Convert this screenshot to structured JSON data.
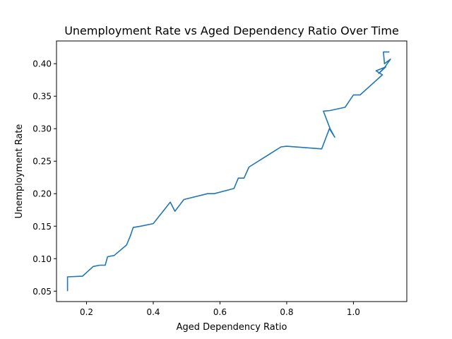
{
  "chart_data": {
    "type": "line",
    "title": "Unemployment Rate vs Aged Dependency Ratio Over Time",
    "xlabel": "Aged Dependency Ratio",
    "ylabel": "Unemployment Rate",
    "xlim": [
      0.11,
      1.16
    ],
    "ylim": [
      0.034,
      0.435
    ],
    "xticks": [
      0.2,
      0.4,
      0.6,
      0.8,
      1.0
    ],
    "xtick_labels": [
      "0.2",
      "0.4",
      "0.6",
      "0.8",
      "1.0"
    ],
    "yticks": [
      0.05,
      0.1,
      0.15,
      0.2,
      0.25,
      0.3,
      0.35,
      0.4
    ],
    "ytick_labels": [
      "0.05",
      "0.10",
      "0.15",
      "0.20",
      "0.25",
      "0.30",
      "0.35",
      "0.40"
    ],
    "grid": false,
    "series": [
      {
        "color": "#1f77b4",
        "x": [
          0.143,
          0.143,
          0.188,
          0.22,
          0.24,
          0.256,
          0.263,
          0.283,
          0.32,
          0.333,
          0.33,
          0.34,
          0.362,
          0.4,
          0.451,
          0.465,
          0.492,
          0.563,
          0.583,
          0.642,
          0.655,
          0.672,
          0.687,
          0.783,
          0.8,
          0.905,
          0.928,
          0.944,
          0.93,
          0.91,
          0.93,
          0.975,
          1.0,
          1.02,
          1.087,
          1.068,
          1.097,
          1.076,
          1.093,
          1.111,
          1.093,
          1.09,
          1.108
        ],
        "y": [
          0.05,
          0.072,
          0.073,
          0.088,
          0.09,
          0.09,
          0.103,
          0.105,
          0.121,
          0.137,
          0.133,
          0.148,
          0.15,
          0.154,
          0.187,
          0.173,
          0.191,
          0.2,
          0.2,
          0.208,
          0.224,
          0.224,
          0.241,
          0.272,
          0.273,
          0.269,
          0.3,
          0.287,
          0.3,
          0.327,
          0.328,
          0.333,
          0.352,
          0.352,
          0.383,
          0.389,
          0.395,
          0.385,
          0.394,
          0.407,
          0.4,
          0.418,
          0.418
        ]
      }
    ]
  }
}
